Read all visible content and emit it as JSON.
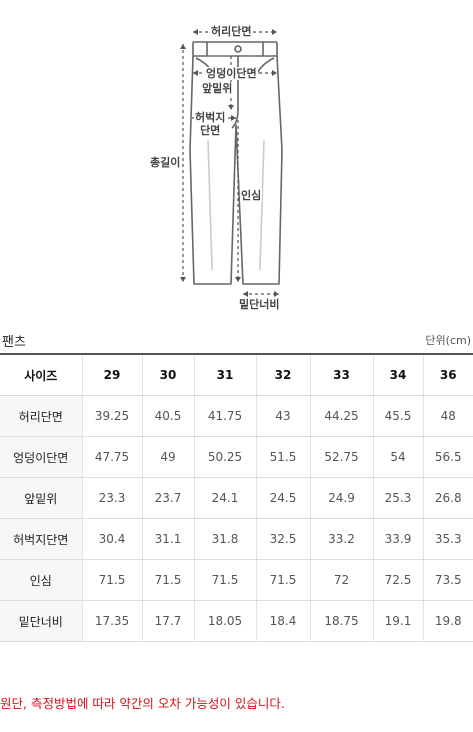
{
  "diagram": {
    "labels": {
      "waist": "허리단면",
      "hip": "엉덩이단면",
      "rise": "앞밑위",
      "thigh": "허벅지\n단면",
      "inseam": "인심",
      "total_length": "총길이",
      "hem": "밑단너비"
    }
  },
  "section_title": "팬츠",
  "unit": "단위(cm)",
  "table": {
    "header_label": "사이즈",
    "sizes": [
      "29",
      "30",
      "31",
      "32",
      "33",
      "34",
      "36"
    ],
    "rows": [
      {
        "label": "허리단면",
        "values": [
          "39.25",
          "40.5",
          "41.75",
          "43",
          "44.25",
          "45.5",
          "48"
        ]
      },
      {
        "label": "엉덩이단면",
        "values": [
          "47.75",
          "49",
          "50.25",
          "51.5",
          "52.75",
          "54",
          "56.5"
        ]
      },
      {
        "label": "앞밑위",
        "values": [
          "23.3",
          "23.7",
          "24.1",
          "24.5",
          "24.9",
          "25.3",
          "26.8"
        ]
      },
      {
        "label": "허벅지단면",
        "values": [
          "30.4",
          "31.1",
          "31.8",
          "32.5",
          "33.2",
          "33.9",
          "35.3"
        ]
      },
      {
        "label": "인심",
        "values": [
          "71.5",
          "71.5",
          "71.5",
          "71.5",
          "72",
          "72.5",
          "73.5"
        ]
      },
      {
        "label": "밑단너비",
        "values": [
          "17.35",
          "17.7",
          "18.05",
          "18.4",
          "18.75",
          "19.1",
          "19.8"
        ]
      }
    ]
  },
  "notice": "원단, 측정방법에 따라 약간의 오차 가능성이 있습니다."
}
